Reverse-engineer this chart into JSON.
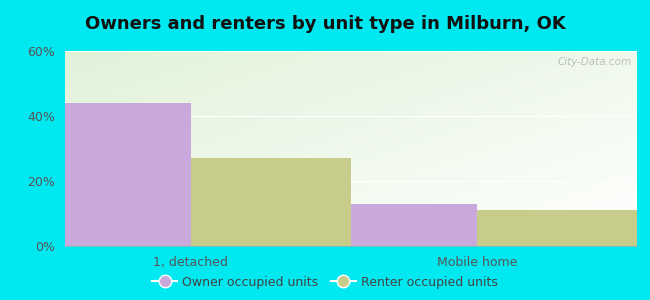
{
  "title": "Owners and renters by unit type in Milburn, OK",
  "categories": [
    "1, detached",
    "Mobile home"
  ],
  "owner_values": [
    44,
    13
  ],
  "renter_values": [
    27,
    11
  ],
  "owner_color": "#c9a8dc",
  "renter_color": "#c8cc8a",
  "owner_label": "Owner occupied units",
  "renter_label": "Renter occupied units",
  "ylim": [
    0,
    60
  ],
  "yticks": [
    0,
    20,
    40,
    60
  ],
  "ytick_labels": [
    "0%",
    "20%",
    "40%",
    "60%"
  ],
  "background_outer": "#00e8f0",
  "bar_width": 0.28,
  "title_fontsize": 13,
  "watermark": "City-Data.com",
  "group_positions": [
    0.22,
    0.72
  ],
  "xlim": [
    0.0,
    1.0
  ]
}
